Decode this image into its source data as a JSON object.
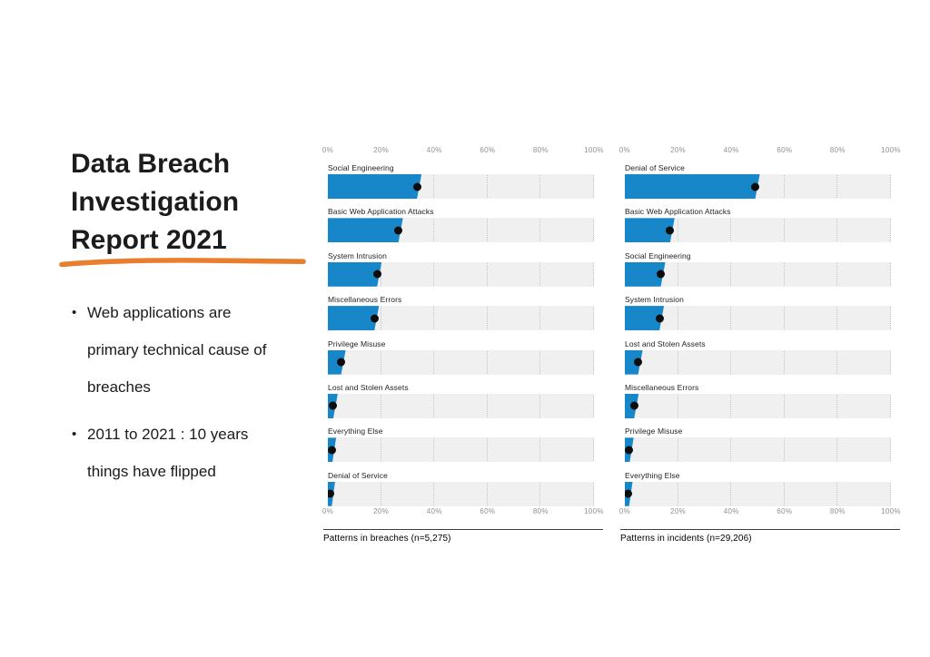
{
  "slide": {
    "background": "#FFFFFF",
    "title": "Data Breach Investigation Report 2021",
    "title_lines": [
      "Data Breach",
      "Investigation",
      "Report 2021"
    ],
    "accent_color": "#E87E2E",
    "bullet_glyph": "•",
    "bullets": [
      {
        "lines": [
          "Web applications are",
          "primary technical cause of",
          "breaches"
        ]
      },
      {
        "lines": [
          "2011 to 2021 : 10 years",
          "things have flipped"
        ]
      }
    ]
  },
  "chart_style": {
    "bar_color": "#1787C9",
    "band_color": "#F0F0F0",
    "dot_color": "#0D0D0D",
    "gridline_color": "#C2C5C7",
    "axis_text_color": "#8E9194",
    "label_text_color": "#1F1F1F"
  },
  "chart_data": [
    {
      "type": "bar",
      "orientation": "horizontal",
      "title": "Patterns in breaches (n=5,275)",
      "xlabel": "",
      "ylabel": "",
      "xlim": [
        0,
        100
      ],
      "x_ticks": [
        "0%",
        "20%",
        "40%",
        "60%",
        "80%",
        "100%"
      ],
      "gridlines": [
        20,
        40,
        60,
        80,
        100
      ],
      "legend_position": "none",
      "marker": "dot-at-value",
      "categories": [
        "Social Engineering",
        "Basic Web Application Attacks",
        "System Intrusion",
        "Miscellaneous Errors",
        "Privilege Misuse",
        "Lost and Stolen Assets",
        "Everything Else",
        "Denial of Service"
      ],
      "values": [
        33.5,
        26.5,
        18.5,
        17.5,
        5,
        2,
        1.4,
        1
      ]
    },
    {
      "type": "bar",
      "orientation": "horizontal",
      "title": "Patterns in incidents (n=29,206)",
      "xlabel": "",
      "ylabel": "",
      "xlim": [
        0,
        100
      ],
      "x_ticks": [
        "0%",
        "20%",
        "40%",
        "60%",
        "80%",
        "100%"
      ],
      "gridlines": [
        20,
        40,
        60,
        80,
        100
      ],
      "legend_position": "none",
      "marker": "dot-at-value",
      "categories": [
        "Denial of Service",
        "Basic Web Application Attacks",
        "Social Engineering",
        "System Intrusion",
        "Lost and Stolen Assets",
        "Miscellaneous Errors",
        "Privilege Misuse",
        "Everything Else"
      ],
      "values": [
        49,
        17,
        13.5,
        13,
        5,
        3.5,
        1.6,
        1.2
      ]
    }
  ]
}
